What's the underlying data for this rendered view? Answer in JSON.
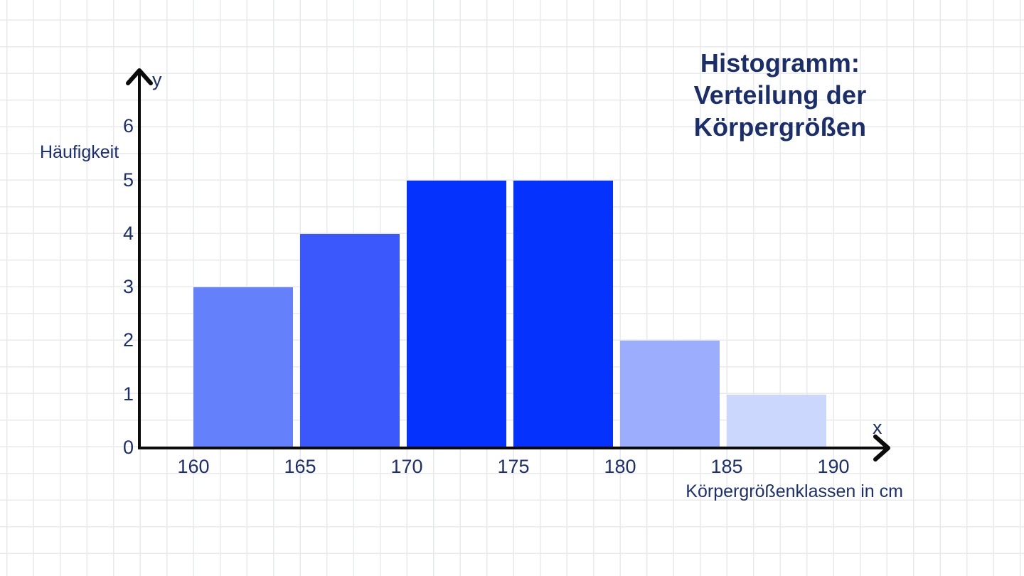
{
  "page": {
    "background": "#ffffff",
    "grid_color": "#e9eaee"
  },
  "title": {
    "lines": [
      "Histogramm:",
      "Verteilung der",
      "Körpergrößen"
    ],
    "color": "#1b2e6c"
  },
  "colors": {
    "text": "#1c2f6e",
    "axis": "#0b0b0b"
  },
  "chart_data": {
    "type": "bar",
    "subtype": "histogram",
    "title": "Histogramm: Verteilung der Körpergrößen",
    "xlabel": "Körpergrößenklassen in cm",
    "ylabel": "Häufigkeit",
    "x_axis_symbol": "x",
    "y_axis_symbol": "y",
    "categories": [
      "160–165",
      "165–170",
      "170–175",
      "175–180",
      "180–185",
      "185–190"
    ],
    "class_starts": [
      160,
      165,
      170,
      175,
      180,
      185
    ],
    "class_width_cm": 5,
    "values": [
      3,
      4,
      5,
      5,
      2,
      1
    ],
    "bar_colors": [
      "#6481fb",
      "#3a58fc",
      "#0533fd",
      "#0533fd",
      "#9cadfd",
      "#ccd7fd"
    ],
    "x_ticks": [
      160,
      165,
      170,
      175,
      180,
      185,
      190
    ],
    "y_ticks": [
      0,
      1,
      2,
      3,
      4,
      5,
      6
    ],
    "ylim": [
      0,
      7
    ],
    "xlim": [
      157.5,
      192.5
    ],
    "grid": true,
    "legend": false
  }
}
